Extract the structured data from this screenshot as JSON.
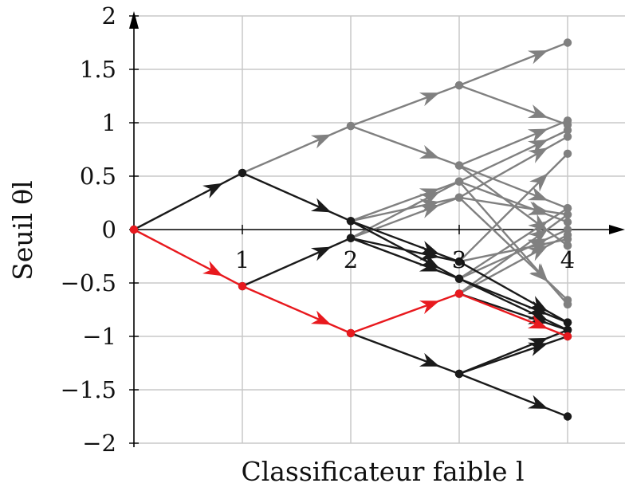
{
  "chart_data": {
    "type": "line",
    "title": "",
    "xlabel": "Classificateur faible l",
    "ylabel": "Seuil θl",
    "xlim": [
      0,
      4.4
    ],
    "ylim": [
      -2,
      2
    ],
    "x_ticks": [
      {
        "value": 1,
        "label": "1"
      },
      {
        "value": 2,
        "label": "2"
      },
      {
        "value": 3,
        "label": "3"
      },
      {
        "value": 4,
        "label": "4"
      }
    ],
    "y_ticks": [
      {
        "value": 2,
        "label": "2"
      },
      {
        "value": 1.5,
        "label": "1.5"
      },
      {
        "value": 1,
        "label": "1"
      },
      {
        "value": 0.5,
        "label": "0.5"
      },
      {
        "value": 0,
        "label": "0"
      },
      {
        "value": -0.5,
        "label": "−0.5"
      },
      {
        "value": -1,
        "label": "−1"
      },
      {
        "value": -1.5,
        "label": "−1.5"
      },
      {
        "value": -2,
        "label": "−2"
      }
    ],
    "grid": true,
    "colors": {
      "black": "#1a1a1a",
      "gray": "#808080",
      "red": "#e8191e",
      "grid": "#c8c8c8",
      "axis": "#000000"
    },
    "series": [
      {
        "color": "gray",
        "points": [
          [
            1,
            0.53
          ],
          [
            2,
            0.97
          ],
          [
            3,
            1.35
          ],
          [
            4,
            1.75
          ]
        ]
      },
      {
        "color": "gray",
        "points": [
          [
            3,
            1.35
          ],
          [
            4,
            0.98
          ]
        ]
      },
      {
        "color": "gray",
        "points": [
          [
            2,
            0.97
          ],
          [
            3,
            0.6
          ],
          [
            4,
            1.02
          ]
        ]
      },
      {
        "color": "gray",
        "points": [
          [
            3,
            0.6
          ],
          [
            4,
            0.2
          ]
        ]
      },
      {
        "color": "gray",
        "points": [
          [
            2,
            0.08
          ],
          [
            3,
            0.45
          ],
          [
            4,
            0.93
          ]
        ]
      },
      {
        "color": "gray",
        "points": [
          [
            3,
            0.45
          ],
          [
            4,
            0.07
          ]
        ]
      },
      {
        "color": "gray",
        "points": [
          [
            2,
            0.08
          ],
          [
            3,
            0.3
          ],
          [
            4,
            0.87
          ]
        ]
      },
      {
        "color": "gray",
        "points": [
          [
            3,
            0.3
          ],
          [
            4,
            0.14
          ]
        ]
      },
      {
        "color": "gray",
        "points": [
          [
            2,
            -0.08
          ],
          [
            3,
            0.45
          ]
        ]
      },
      {
        "color": "gray",
        "points": [
          [
            2,
            -0.08
          ],
          [
            3,
            0.3
          ]
        ]
      },
      {
        "color": "gray",
        "points": [
          [
            3,
            -0.3
          ],
          [
            4,
            0.71
          ]
        ]
      },
      {
        "color": "gray",
        "points": [
          [
            3,
            -0.3
          ],
          [
            4,
            -0.09
          ]
        ]
      },
      {
        "color": "gray",
        "points": [
          [
            3,
            -0.46
          ],
          [
            4,
            0.2
          ]
        ]
      },
      {
        "color": "gray",
        "points": [
          [
            3,
            -0.46
          ],
          [
            4,
            0.0
          ]
        ]
      },
      {
        "color": "gray",
        "points": [
          [
            3,
            -0.6
          ],
          [
            4,
            0.14
          ]
        ]
      },
      {
        "color": "gray",
        "points": [
          [
            3,
            -0.6
          ],
          [
            4,
            -0.05
          ]
        ]
      },
      {
        "color": "gray",
        "points": [
          [
            3,
            0.6
          ],
          [
            4,
            -0.15
          ]
        ]
      },
      {
        "color": "gray",
        "points": [
          [
            3,
            0.45
          ],
          [
            4,
            -0.7
          ]
        ]
      },
      {
        "color": "gray",
        "points": [
          [
            3,
            0.3
          ],
          [
            4,
            -0.66
          ]
        ]
      },
      {
        "color": "black",
        "points": [
          [
            0,
            0
          ],
          [
            1,
            0.53
          ],
          [
            2,
            0.08
          ],
          [
            3,
            -0.3
          ],
          [
            4,
            -0.87
          ]
        ]
      },
      {
        "color": "black",
        "points": [
          [
            2,
            0.08
          ],
          [
            3,
            -0.46
          ],
          [
            4,
            -0.94
          ]
        ]
      },
      {
        "color": "black",
        "points": [
          [
            1,
            -0.53
          ],
          [
            2,
            -0.08
          ],
          [
            3,
            -0.3
          ]
        ]
      },
      {
        "color": "black",
        "points": [
          [
            2,
            -0.08
          ],
          [
            3,
            -0.46
          ],
          [
            4,
            -0.87
          ]
        ]
      },
      {
        "color": "black",
        "points": [
          [
            2,
            -0.97
          ],
          [
            3,
            -1.35
          ],
          [
            4,
            -1.75
          ]
        ]
      },
      {
        "color": "black",
        "points": [
          [
            3,
            -1.35
          ],
          [
            4,
            -0.94
          ]
        ]
      },
      {
        "color": "black",
        "points": [
          [
            3,
            -1.35
          ],
          [
            4,
            -1.0
          ]
        ]
      },
      {
        "color": "black",
        "points": [
          [
            3,
            -0.6
          ],
          [
            4,
            -0.94
          ]
        ]
      },
      {
        "color": "red",
        "points": [
          [
            0,
            0
          ],
          [
            1,
            -0.53
          ],
          [
            2,
            -0.97
          ],
          [
            3,
            -0.6
          ],
          [
            4,
            -1.0
          ]
        ]
      }
    ],
    "extra_points": [
      {
        "color": "black",
        "x": 4,
        "y": -0.94
      },
      {
        "color": "gray",
        "x": 4,
        "y": -0.7
      },
      {
        "color": "gray",
        "x": 4,
        "y": -0.15
      }
    ]
  }
}
